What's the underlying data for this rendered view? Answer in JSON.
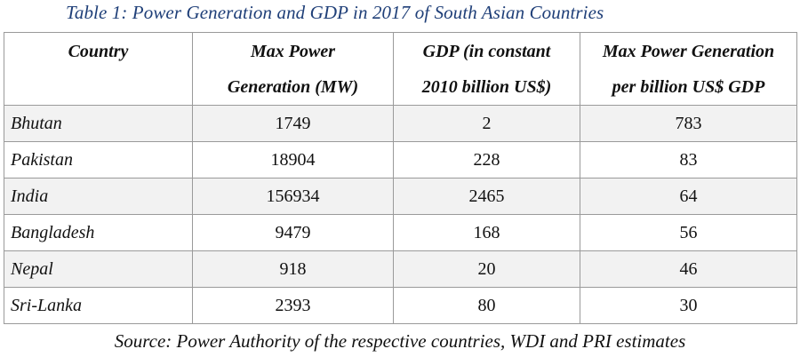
{
  "caption": "Table 1: Power Generation and GDP in 2017 of South Asian Countries",
  "columns": [
    {
      "line1": "Country",
      "line2": ""
    },
    {
      "line1": "Max Power",
      "line2": "Generation (MW)"
    },
    {
      "line1": "GDP (in constant",
      "line2": "2010 billion US$)"
    },
    {
      "line1": "Max Power Generation",
      "line2": "per billion US$ GDP"
    }
  ],
  "rows": [
    {
      "country": "Bhutan",
      "max_power_mw": "1749",
      "gdp": "2",
      "power_per_gdp": "783"
    },
    {
      "country": "Pakistan",
      "max_power_mw": "18904",
      "gdp": "228",
      "power_per_gdp": "83"
    },
    {
      "country": "India",
      "max_power_mw": "156934",
      "gdp": "2465",
      "power_per_gdp": "64"
    },
    {
      "country": "Bangladesh",
      "max_power_mw": "9479",
      "gdp": "168",
      "power_per_gdp": "56"
    },
    {
      "country": "Nepal",
      "max_power_mw": "918",
      "gdp": "20",
      "power_per_gdp": "46"
    },
    {
      "country": "Sri-Lanka",
      "max_power_mw": "2393",
      "gdp": "80",
      "power_per_gdp": "30"
    }
  ],
  "source": "Source: Power Authority of the respective countries, WDI and PRI estimates",
  "colors": {
    "caption": "#1f3f78",
    "shaded_row": "#f2f2f2",
    "border": "#9a9a9a"
  }
}
